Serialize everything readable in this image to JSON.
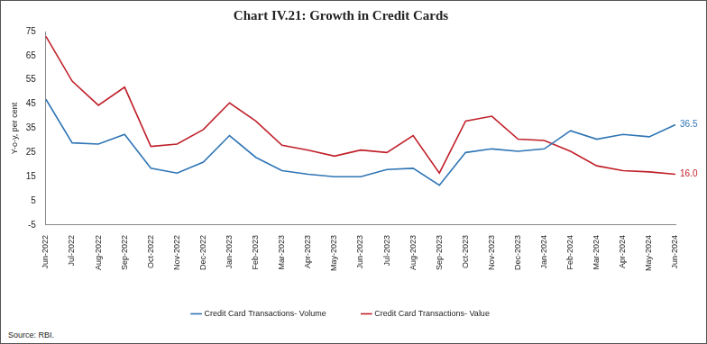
{
  "chart_data": {
    "type": "line",
    "title": "Chart IV.21: Growth in Credit Cards",
    "y_label": "Y-o-y, per cent",
    "source": "Source: RBI.",
    "categories": [
      "Jun-2022",
      "Jul-2022",
      "Aug-2022",
      "Sep-2022",
      "Oct-2022",
      "Nov-2022",
      "Dec-2022",
      "Jan-2023",
      "Feb-2023",
      "Mar-2023",
      "Apr-2023",
      "May-2023",
      "Jun-2023",
      "Jul-2023",
      "Aug-2023",
      "Sep-2023",
      "Oct-2023",
      "Nov-2023",
      "Dec-2023",
      "Jan-2024",
      "Feb-2024",
      "Mar-2024",
      "Apr-2024",
      "May-2024",
      "Jun-2024"
    ],
    "series": [
      {
        "name": "Credit Card Transactions- Volume",
        "color": "#2f75b5",
        "values": [
          47,
          29,
          28.5,
          32.5,
          18.5,
          16.5,
          21,
          32,
          23,
          17.5,
          16,
          15,
          15,
          18,
          18.5,
          11.5,
          25,
          26.5,
          25.5,
          26.5,
          34,
          30.5,
          32.5,
          31.5,
          36.5
        ]
      },
      {
        "name": "Credit Card Transactions- Value",
        "color": "#c0202a",
        "values": [
          73,
          54.5,
          44.5,
          52,
          27.5,
          28.5,
          34.5,
          45.5,
          38,
          28,
          26,
          23.5,
          26,
          25,
          32,
          16.5,
          38,
          40,
          30.5,
          30,
          25.5,
          19.5,
          17.5,
          17,
          16
        ]
      }
    ],
    "annotations": [
      {
        "label": "36.5",
        "category": "Jun-2024",
        "value": 36.5,
        "series": "Credit Card Transactions- Volume"
      },
      {
        "label": "16.0",
        "category": "Jun-2024",
        "value": 16,
        "series": "Credit Card Transactions- Value"
      }
    ],
    "ylim": [
      -5,
      75
    ],
    "yticks": [
      -5,
      5,
      15,
      25,
      35,
      45,
      55,
      65,
      75
    ],
    "grid": false,
    "legend": "bottom"
  }
}
